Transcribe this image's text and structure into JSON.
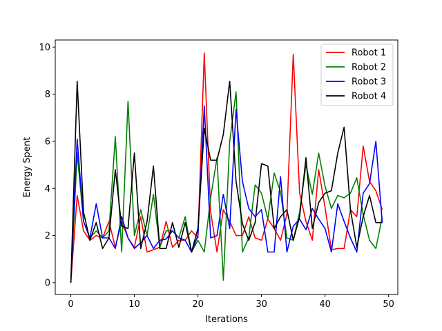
{
  "chart_data": {
    "type": "line",
    "xlabel": "Iterations",
    "ylabel": "Energy Spent",
    "xlim": [
      -2.45,
      51.45
    ],
    "ylim": [
      -0.5,
      10.3
    ],
    "xticks": [
      0,
      10,
      20,
      30,
      40,
      50
    ],
    "yticks": [
      0,
      2,
      4,
      6,
      8,
      10
    ],
    "grid": false,
    "legend": "top-right",
    "x": [
      0,
      1,
      2,
      3,
      4,
      5,
      6,
      7,
      8,
      9,
      10,
      11,
      12,
      13,
      14,
      15,
      16,
      17,
      18,
      19,
      20,
      21,
      22,
      23,
      24,
      25,
      26,
      27,
      28,
      29,
      30,
      31,
      32,
      33,
      34,
      35,
      36,
      37,
      38,
      39,
      40,
      41,
      42,
      43,
      44,
      45,
      46,
      47,
      48,
      49
    ],
    "series": [
      {
        "name": "Robot 1",
        "color": "#ff0000",
        "values": [
          0,
          3.7,
          2.2,
          1.8,
          2.0,
          1.9,
          2.6,
          1.5,
          2.6,
          1.9,
          1.5,
          2.8,
          1.3,
          1.4,
          1.5,
          2.6,
          1.5,
          1.8,
          1.8,
          2.2,
          1.9,
          9.75,
          3.0,
          1.3,
          3.1,
          2.6,
          2.0,
          2.0,
          2.8,
          1.9,
          1.8,
          2.7,
          2.3,
          1.8,
          2.9,
          9.7,
          3.8,
          2.6,
          1.8,
          4.8,
          3.2,
          1.4,
          1.45,
          1.45,
          3.1,
          2.8,
          5.8,
          4.3,
          3.9,
          3.1
        ]
      },
      {
        "name": "Robot 2",
        "color": "#008000",
        "values": [
          0,
          5.5,
          2.6,
          1.9,
          2.2,
          1.9,
          2.2,
          6.2,
          1.3,
          7.7,
          2.0,
          3.1,
          2.0,
          3.75,
          1.5,
          2.2,
          2.2,
          1.9,
          2.8,
          1.3,
          1.8,
          1.3,
          3.6,
          5.3,
          0.1,
          6.0,
          8.1,
          1.3,
          1.9,
          4.15,
          3.8,
          2.7,
          4.65,
          3.85,
          1.9,
          1.8,
          3.0,
          5.0,
          3.75,
          5.5,
          4.1,
          3.15,
          3.7,
          3.6,
          3.8,
          4.45,
          2.9,
          1.8,
          1.45,
          2.8
        ]
      },
      {
        "name": "Robot 3",
        "color": "#0000ff",
        "values": [
          0,
          6.1,
          2.6,
          1.9,
          3.35,
          1.9,
          1.9,
          1.45,
          2.8,
          1.9,
          1.45,
          1.7,
          2.0,
          1.45,
          1.8,
          1.85,
          2.2,
          1.9,
          1.8,
          1.3,
          2.0,
          7.5,
          1.9,
          2.0,
          3.75,
          2.3,
          7.35,
          4.3,
          3.15,
          2.8,
          3.1,
          1.3,
          1.3,
          4.5,
          1.3,
          2.4,
          2.7,
          2.25,
          3.15,
          2.7,
          2.3,
          1.3,
          3.35,
          2.6,
          1.9,
          1.3,
          3.8,
          4.2,
          6.0,
          2.55
        ]
      },
      {
        "name": "Robot 4",
        "color": "#000000",
        "values": [
          0,
          8.55,
          3.0,
          1.8,
          2.55,
          1.45,
          1.9,
          4.8,
          2.4,
          2.3,
          5.5,
          1.45,
          2.6,
          4.95,
          1.45,
          1.45,
          2.55,
          1.5,
          2.55,
          1.3,
          2.3,
          6.55,
          5.2,
          5.2,
          6.3,
          8.55,
          4.3,
          2.5,
          1.8,
          2.55,
          5.05,
          4.95,
          2.3,
          2.8,
          3.1,
          1.8,
          2.8,
          5.3,
          2.3,
          3.4,
          3.8,
          3.9,
          5.5,
          6.6,
          3.1,
          1.5,
          2.8,
          3.7,
          2.55,
          2.55
        ]
      }
    ]
  }
}
